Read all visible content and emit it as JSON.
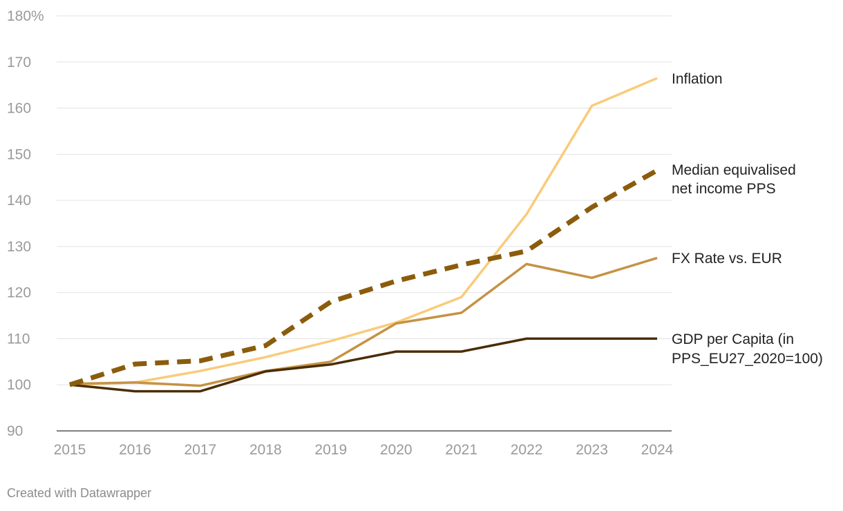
{
  "chart_data": {
    "type": "line",
    "title": "",
    "xlabel": "",
    "ylabel": "",
    "ylim": [
      90,
      180
    ],
    "y_ticks": [
      "90",
      "100",
      "110",
      "120",
      "130",
      "140",
      "150",
      "160",
      "170",
      "180%"
    ],
    "categories": [
      "2015",
      "2016",
      "2017",
      "2018",
      "2019",
      "2020",
      "2021",
      "2022",
      "2023",
      "2024"
    ],
    "series": [
      {
        "name": "Inflation",
        "label_lines": [
          "Inflation"
        ],
        "color": "#f9cb7a",
        "style": "solid",
        "values": [
          100,
          100.5,
          103,
          106,
          109.5,
          113.5,
          119,
          137,
          160.5,
          166.5
        ]
      },
      {
        "name": "Median equivalised net income PPS",
        "label_lines": [
          "Median equivalised",
          "net income PPS"
        ],
        "color": "#8a5c0c",
        "style": "dashed",
        "values": [
          100,
          104.5,
          105.2,
          108.5,
          118,
          122.5,
          126,
          129,
          138.5,
          146.5
        ]
      },
      {
        "name": "FX Rate vs. EUR",
        "label_lines": [
          "FX Rate vs. EUR"
        ],
        "color": "#c59244",
        "style": "solid",
        "values": [
          100.2,
          100.5,
          99.8,
          103,
          105,
          113.3,
          115.6,
          126.2,
          123.2,
          127.5
        ]
      },
      {
        "name": "GDP per Capita (in PPS_EU27_2020=100)",
        "label_lines": [
          "GDP per Capita (in",
          "PPS_EU27_2020=100)"
        ],
        "color": "#4a2d05",
        "style": "solid",
        "values": [
          100,
          98.6,
          98.6,
          102.9,
          104.4,
          107.2,
          107.2,
          110,
          110,
          110
        ]
      }
    ]
  },
  "credit": "Created with Datawrapper"
}
